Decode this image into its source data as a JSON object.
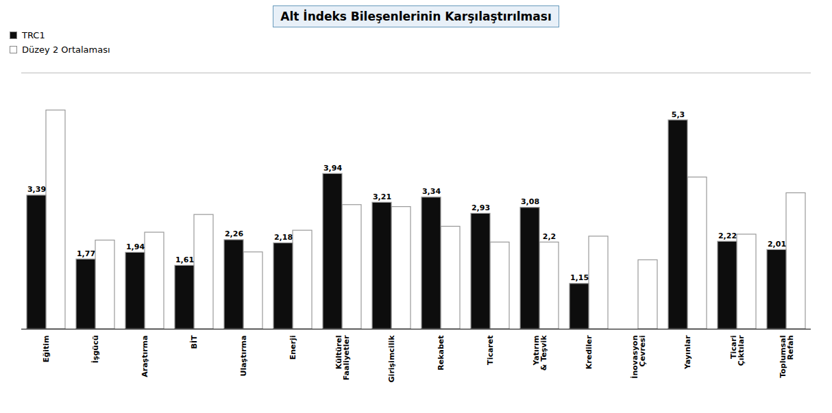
{
  "chart_data": {
    "type": "bar",
    "title": "Alt İndeks Bileşenlerinin Karşılaştırılması",
    "categories": [
      "Eğitim",
      "İşgücü",
      "Araştırma",
      "BİT",
      "Ulaştırma",
      "Enerji",
      "Kültürel\nFaaliyetler",
      "Girişimcilik",
      "Rekabet",
      "Ticaret",
      "Yatırım\n& Teşvik",
      "Krediler",
      "İnovasyon\nÇevresi",
      "Yayınlar",
      "Ticari\nÇıktılar",
      "Toplumsal\nRefah"
    ],
    "series": [
      {
        "name": "TRC1",
        "color": "#0d0d0d",
        "values": [
          3.39,
          1.77,
          1.94,
          1.61,
          2.26,
          2.18,
          3.94,
          3.21,
          3.34,
          2.93,
          3.08,
          1.15,
          0.0,
          5.3,
          2.22,
          2.01
        ],
        "value_labels": [
          "3,39",
          "1,77",
          "1,94",
          "1,61",
          "2,26",
          "2,18",
          "3,94",
          "3,21",
          "3,34",
          "2,93",
          "3,08",
          "1,15",
          null,
          "5,3",
          "2,22",
          "2,01"
        ]
      },
      {
        "name": "Düzey 2 Ortalaması",
        "color": "#ffffff",
        "values": [
          5.55,
          2.25,
          2.45,
          2.9,
          1.95,
          2.5,
          3.15,
          3.1,
          2.6,
          2.2,
          2.2,
          2.35,
          1.75,
          3.85,
          2.4,
          3.45
        ],
        "value_labels": [
          null,
          null,
          null,
          null,
          null,
          null,
          null,
          null,
          null,
          null,
          "2,2",
          null,
          null,
          null,
          null,
          null
        ]
      }
    ],
    "ylim": [
      0,
      6.5
    ],
    "tick_labels": "x",
    "legend": "upper left",
    "grid": false
  }
}
